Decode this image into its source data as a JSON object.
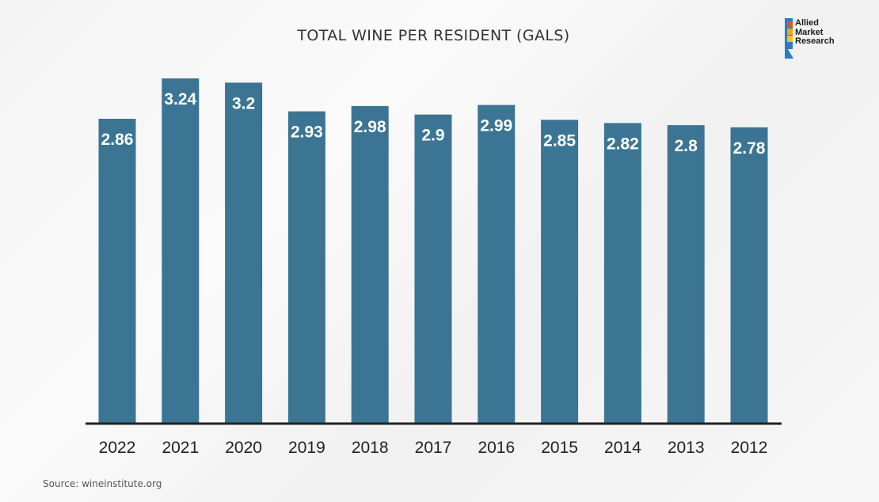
{
  "chart_data": {
    "type": "bar",
    "title": "TOTAL WINE PER RESIDENT (GALS)",
    "categories": [
      "2022",
      "2021",
      "2020",
      "2019",
      "2018",
      "2017",
      "2016",
      "2015",
      "2014",
      "2013",
      "2012"
    ],
    "values": [
      2.86,
      3.24,
      3.2,
      2.93,
      2.98,
      2.9,
      2.99,
      2.85,
      2.82,
      2.8,
      2.78
    ],
    "xlabel": "",
    "ylabel": "",
    "ylim": [
      0,
      3.24
    ],
    "grid": false,
    "bar_color": "#3b7593",
    "axis_color": "#222222",
    "label_color": "#ffffff"
  },
  "logo": {
    "line1": "Allied",
    "line2": "Market",
    "line3": "Research",
    "colors": [
      "#e8512a",
      "#f5a21b",
      "#2a7dbf"
    ]
  },
  "source": "Source: wineinstitute.org"
}
